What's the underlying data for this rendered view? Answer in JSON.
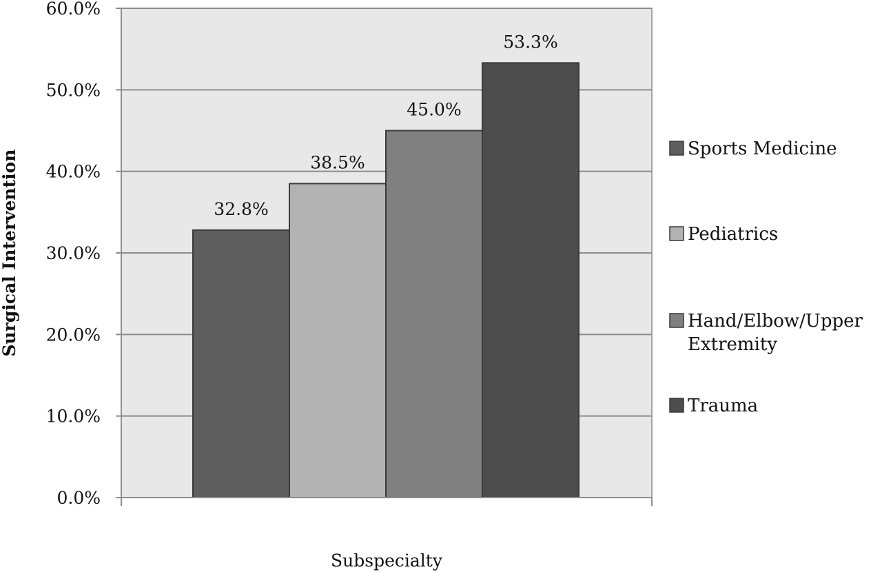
{
  "chart_data": {
    "type": "bar",
    "categories": [
      "Sports Medicine",
      "Pediatrics",
      "Hand/Elbow/Upper Extremity",
      "Trauma"
    ],
    "values": [
      32.8,
      38.5,
      45.0,
      53.3
    ],
    "data_labels": [
      "32.8%",
      "38.5%",
      "45.0%",
      "53.3%"
    ],
    "colors": [
      "#5e5e5e",
      "#b3b3b3",
      "#808080",
      "#4d4d4d"
    ],
    "legend": [
      {
        "lines": [
          "Sports Medicine"
        ]
      },
      {
        "lines": [
          "Pediatrics"
        ]
      },
      {
        "lines": [
          "Hand/Elbow/Upper",
          "Extremity"
        ]
      },
      {
        "lines": [
          "Trauma"
        ]
      }
    ],
    "legend_position": "right",
    "xlabel": "Subspecialty",
    "ylabel": "Surgical Intervention",
    "ylim": [
      0,
      60
    ],
    "yticks": [
      0,
      10,
      20,
      30,
      40,
      50,
      60
    ],
    "ytick_labels": [
      "0.0%",
      "10.0%",
      "20.0%",
      "30.0%",
      "40.0%",
      "50.0%",
      "60.0%"
    ],
    "grid": true,
    "plot_background": "#e8e8e8"
  }
}
